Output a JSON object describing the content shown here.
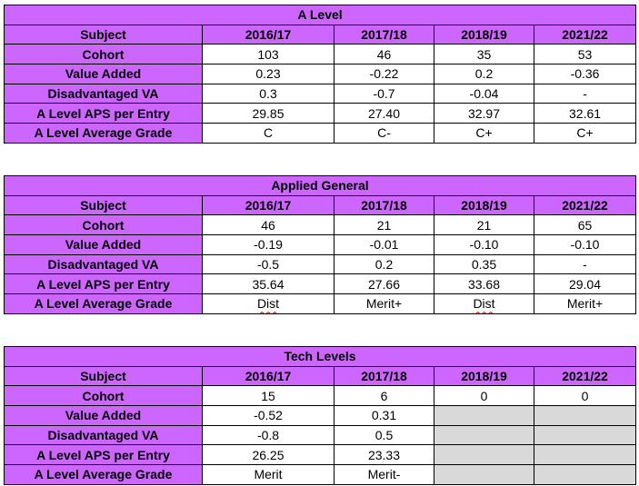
{
  "tables": [
    {
      "title": "A Level",
      "header": [
        "Subject",
        "2016/17",
        "2017/18",
        "2018/19",
        "2021/22"
      ],
      "rows": [
        [
          "Cohort",
          "103",
          "46",
          "35",
          "53"
        ],
        [
          "Value Added",
          "0.23",
          "-0.22",
          "0.2",
          "-0.36"
        ],
        [
          "Disadvantaged VA",
          "0.3",
          "-0.7",
          "-0.04",
          "-"
        ],
        [
          "A Level APS per Entry",
          "29.85",
          "27.40",
          "32.97",
          "32.61"
        ],
        [
          "A Level Average Grade",
          "C",
          "C-",
          "C+",
          "C+"
        ]
      ]
    },
    {
      "title": "Applied General",
      "header": [
        "Subject",
        "2016/17",
        "2017/18",
        "2018/19",
        "2021/22"
      ],
      "rows": [
        [
          "Cohort",
          "46",
          "21",
          "21",
          "65"
        ],
        [
          "Value Added",
          "-0.19",
          "-0.01",
          "-0.10",
          "-0.10"
        ],
        [
          "Disadvantaged VA",
          "-0.5",
          "0.2",
          "0.35",
          "-"
        ],
        [
          "A Level APS per Entry",
          "35.64",
          "27.66",
          "33.68",
          "29.04"
        ],
        [
          "A Level Average Grade",
          "Dist",
          "Merit+",
          "Dist",
          "Merit+"
        ]
      ]
    },
    {
      "title": "Tech Levels",
      "header": [
        "Subject",
        "2016/17",
        "2017/18",
        "2018/19",
        "2021/22"
      ],
      "rows": [
        [
          "Cohort",
          "15",
          "6",
          "0",
          "0"
        ],
        [
          "Value Added",
          "-0.52",
          "0.31",
          "",
          ""
        ],
        [
          "Disadvantaged VA",
          "-0.8",
          "0.5",
          "",
          ""
        ],
        [
          "A Level APS per Entry",
          "26.25",
          "23.33",
          "",
          ""
        ],
        [
          "A Level Average Grade",
          "Merit",
          "Merit-",
          "",
          ""
        ]
      ]
    }
  ]
}
